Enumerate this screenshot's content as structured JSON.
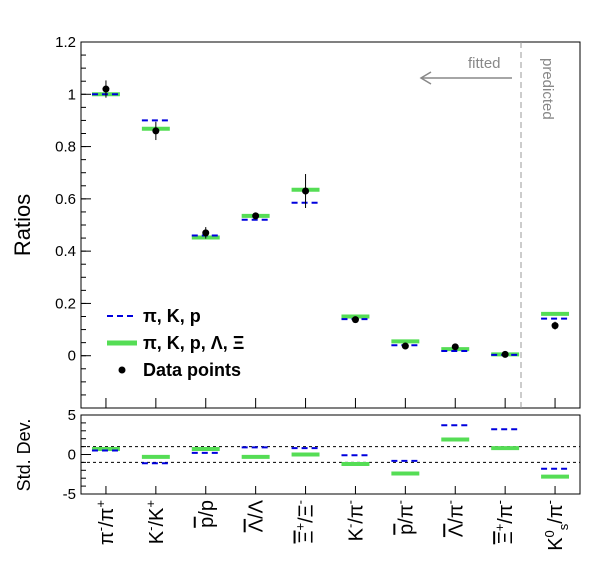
{
  "chart_data": {
    "type": "scatter",
    "categories": [
      "π⁻/π⁺",
      "K⁻/K⁺",
      "p̄/p",
      "Λ̄/Λ",
      "Ξ̄⁺/Ξ⁻",
      "K⁻/π⁻",
      "p̄/π⁻",
      "Λ̄/π⁻",
      "Ξ̄⁺/π⁻",
      "K⁰s/π⁻"
    ],
    "category_parts": [
      {
        "main": "π",
        "sup1": "-",
        "mid": "/π",
        "sup2": "+"
      },
      {
        "main": "K",
        "sup1": "-",
        "mid": "/K",
        "sup2": "+"
      },
      {
        "main": "p",
        "sup1": "",
        "mid": "/p",
        "sup2": "",
        "bar": true
      },
      {
        "main": "Λ",
        "sup1": "",
        "mid": "/Λ",
        "sup2": "",
        "bar": true
      },
      {
        "main": "Ξ",
        "sup1": "+",
        "mid": "/Ξ",
        "sup2": "-",
        "bar": true
      },
      {
        "main": "K",
        "sup1": "-",
        "mid": "/π",
        "sup2": "-"
      },
      {
        "main": "p",
        "sup1": "",
        "mid": "/π",
        "sup2": "-",
        "bar": true
      },
      {
        "main": "Λ",
        "sup1": "",
        "mid": "/π",
        "sup2": "-",
        "bar": true
      },
      {
        "main": "Ξ",
        "sup1": "+",
        "mid": "/π",
        "sup2": "-",
        "bar": true
      },
      {
        "main": "K",
        "sup1": "",
        "mid": "/π",
        "sup2": "-",
        "sub": "s",
        "supk": "0"
      }
    ],
    "top_panel": {
      "ylabel": "Ratios",
      "ylim": [
        -0.2,
        1.2
      ],
      "yticks": [
        "0",
        "0.2",
        "0.4",
        "0.6",
        "0.8",
        "1",
        "1.2"
      ],
      "series": [
        {
          "name": "π, K, p",
          "style": "blue-dashed",
          "values": [
            1.0,
            0.9,
            0.46,
            0.52,
            0.585,
            0.14,
            0.04,
            0.018,
            0.003,
            0.142
          ]
        },
        {
          "name": "π, K, p, Λ, Ξ",
          "style": "green-solid",
          "values": [
            1.0,
            0.868,
            0.452,
            0.535,
            0.635,
            0.15,
            0.055,
            0.025,
            0.005,
            0.16
          ]
        },
        {
          "name": "Data points",
          "style": "black-marker",
          "values": [
            1.02,
            0.86,
            0.47,
            0.535,
            0.63,
            0.138,
            0.037,
            0.034,
            0.005,
            0.115
          ],
          "errors": [
            0.033,
            0.035,
            0.022,
            0.013,
            0.065,
            0.005,
            0.004,
            0.004,
            0.002,
            0.015
          ]
        }
      ],
      "annotations": {
        "fitted": "fitted",
        "predicted": "predicted"
      },
      "divider_after_index": 8.5
    },
    "bottom_panel": {
      "ylabel": "Std. Dev.",
      "ylim": [
        -5,
        5
      ],
      "yticks": [
        "5",
        "0",
        "-5"
      ],
      "reference_lines": [
        1,
        -1
      ],
      "series": [
        {
          "name": "π, K, p",
          "style": "blue-dashed",
          "values": [
            0.5,
            -1.1,
            0.2,
            0.9,
            0.8,
            -0.1,
            -0.8,
            3.7,
            3.2,
            -1.8
          ]
        },
        {
          "name": "π, K, p, Λ, Ξ",
          "style": "green-solid",
          "values": [
            0.7,
            -0.3,
            0.7,
            -0.3,
            0.0,
            -1.2,
            -2.4,
            1.9,
            0.8,
            -2.8
          ]
        }
      ]
    },
    "legend": [
      {
        "label": "π, K, p",
        "style": "blue-dashed"
      },
      {
        "label": "π, K, p, Λ, Ξ",
        "style": "green-solid"
      },
      {
        "label": "Data points",
        "style": "black-marker"
      }
    ],
    "legend_position": "bottom-left",
    "grid": false,
    "colors": {
      "blue": "#0000dd",
      "green": "#55dd55",
      "marker": "#000000",
      "annotation": "#888888"
    }
  }
}
